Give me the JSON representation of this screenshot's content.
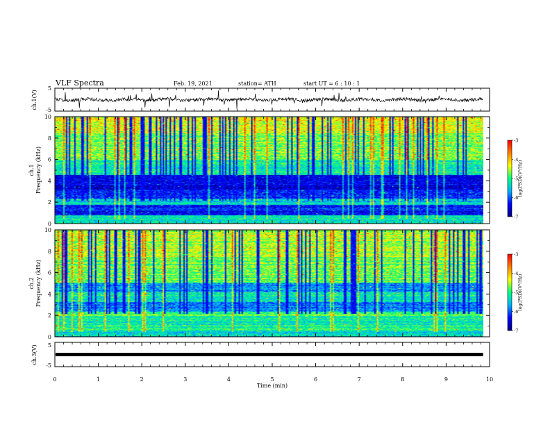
{
  "header": {
    "title": "VLF Spectra",
    "date": "Feb. 19, 2021",
    "station": "station= ATH",
    "start": "start  UT =   6 : 10 : 1"
  },
  "chart_data": [
    {
      "type": "line",
      "name": "ch1-waveform",
      "ylabel": "ch.1(V)",
      "ylim": [
        -5,
        5
      ],
      "yticks": [
        "5",
        "-5"
      ],
      "xlim": [
        0,
        10
      ],
      "baseline": 0,
      "amplitude": 1.2
    },
    {
      "type": "heatmap",
      "name": "ch1-spectrogram",
      "ylabel": "ch.1\nFrequency (kHz)",
      "ylim": [
        0,
        10
      ],
      "yticks": [
        "10",
        "8",
        "6",
        "4",
        "2",
        "0"
      ],
      "xlim": [
        0,
        9.85
      ],
      "colorbar": {
        "label": "log(PSD)(V²/Hz)",
        "range": [
          -7,
          -3
        ],
        "ticks": [
          "-3",
          "-4",
          "-5",
          "-6",
          "-7"
        ]
      }
    },
    {
      "type": "heatmap",
      "name": "ch2-spectrogram",
      "ylabel": "ch.2\nFrequency (kHz)",
      "ylim": [
        0,
        10
      ],
      "yticks": [
        "10",
        "8",
        "6",
        "4",
        "2",
        "0"
      ],
      "xlim": [
        0,
        9.85
      ],
      "colorbar": {
        "label": "log(PSD)(V²/Hz)",
        "range": [
          -7,
          -3
        ],
        "ticks": [
          "-3",
          "-4",
          "-5",
          "-6",
          "-7"
        ]
      }
    },
    {
      "type": "line",
      "name": "ch3-waveform",
      "ylabel": "ch.3(V)",
      "ylim": [
        -5,
        5
      ],
      "yticks": [
        "5",
        "0",
        "-5"
      ],
      "xlim": [
        0,
        10
      ],
      "baseline": 0,
      "amplitude": 0.1
    }
  ],
  "xaxis": {
    "label": "Time (min)",
    "ticks": [
      "0",
      "1",
      "2",
      "3",
      "4",
      "5",
      "6",
      "7",
      "8",
      "9",
      "10"
    ],
    "range": [
      0,
      10
    ]
  },
  "colors": {
    "colormap": [
      "#000080",
      "#0000ff",
      "#00b0ff",
      "#00ff80",
      "#ffff00",
      "#ff8000",
      "#ff0000",
      "#ffffff"
    ]
  }
}
